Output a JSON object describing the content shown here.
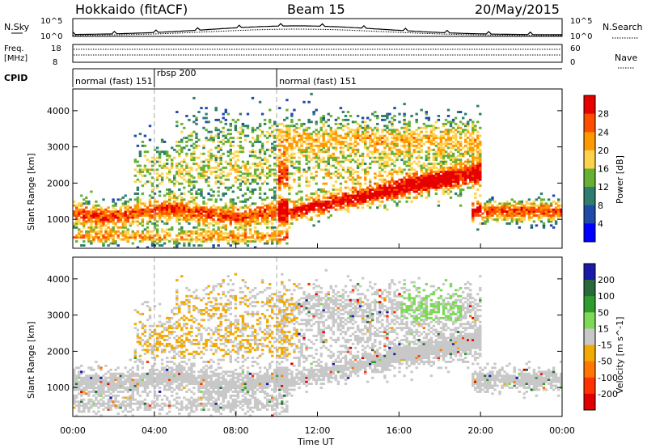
{
  "header": {
    "station": "Hokkaido (fitACF)",
    "beam": "Beam 15",
    "date": "20/May/2015"
  },
  "noise_panel": {
    "left_label": "N.Sky",
    "right_label": "N.Search",
    "left_ticks": [
      "10^5",
      "10^0"
    ],
    "right_ticks": [
      "10^5",
      "10^0"
    ]
  },
  "freq_panel": {
    "left_label_line1": "Freq.",
    "left_label_line2": "[MHz]",
    "left_ticks": [
      "18",
      "8"
    ],
    "right_label": "Nave",
    "right_ticks": [
      "60",
      "0"
    ]
  },
  "cpid": {
    "label": "CPID",
    "segments": [
      {
        "text": "normal (fast) 151",
        "start_h": 0,
        "end_h": 4
      },
      {
        "text": "rbsp 200",
        "start_h": 4,
        "end_h": 10
      },
      {
        "text": "normal (fast) 151",
        "start_h": 10,
        "end_h": 24
      }
    ]
  },
  "chart_data": [
    {
      "type": "heatmap",
      "name": "power",
      "ylabel": "Slant Range [km]",
      "ylim": [
        200,
        4600
      ],
      "xlim": [
        0,
        24
      ],
      "yticks": [
        "1000",
        "2000",
        "3000",
        "4000"
      ],
      "colorbar": {
        "label": "Power [dB]",
        "ticks": [
          "28",
          "24",
          "20",
          "16",
          "12",
          "8",
          "4"
        ],
        "colors": [
          "#e60000",
          "#ff4d00",
          "#ff9900",
          "#ffd24d",
          "#66b033",
          "#2e7d6e",
          "#1f4aa8",
          "#0000ff"
        ]
      }
    },
    {
      "type": "heatmap",
      "name": "velocity",
      "ylabel": "Slant Range [km]",
      "ylim": [
        200,
        4600
      ],
      "xlim": [
        0,
        24
      ],
      "yticks": [
        "1000",
        "2000",
        "3000",
        "4000"
      ],
      "colorbar": {
        "label": "Velocity [m s^-1]",
        "ticks": [
          "200",
          "100",
          "50",
          "15",
          "-15",
          "-50",
          "-100",
          "-200"
        ],
        "colors": [
          "#1a1aa8",
          "#2a6a3a",
          "#2e9c2e",
          "#7ed957",
          "#c8c8c8",
          "#f2a900",
          "#ff7700",
          "#ff3300",
          "#e00000"
        ]
      }
    }
  ],
  "xaxis": {
    "label": "Time UT",
    "ticks": [
      "00:00",
      "04:00",
      "08:00",
      "12:00",
      "16:00",
      "20:00",
      "00:00"
    ]
  }
}
